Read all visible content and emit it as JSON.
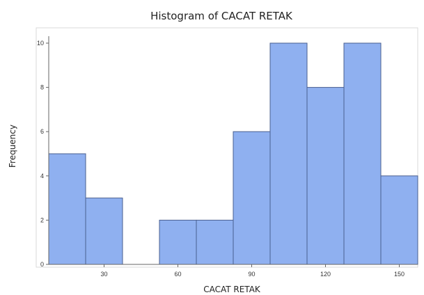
{
  "chart_data": {
    "type": "bar",
    "title": "Histogram of CACAT RETAK",
    "xlabel": "CACAT RETAK",
    "ylabel": "Frequency",
    "bin_width": 15,
    "bins": [
      {
        "start": 7.5,
        "end": 22.5,
        "count": 5
      },
      {
        "start": 22.5,
        "end": 37.5,
        "count": 3
      },
      {
        "start": 37.5,
        "end": 52.5,
        "count": 0
      },
      {
        "start": 52.5,
        "end": 67.5,
        "count": 2
      },
      {
        "start": 67.5,
        "end": 82.5,
        "count": 2
      },
      {
        "start": 82.5,
        "end": 97.5,
        "count": 6
      },
      {
        "start": 97.5,
        "end": 112.5,
        "count": 10
      },
      {
        "start": 112.5,
        "end": 127.5,
        "count": 8
      },
      {
        "start": 127.5,
        "end": 142.5,
        "count": 10
      },
      {
        "start": 142.5,
        "end": 157.5,
        "count": 4
      }
    ],
    "xlim": [
      7.5,
      157.5
    ],
    "ylim": [
      0,
      10
    ],
    "xticks": [
      30,
      60,
      90,
      120,
      150
    ],
    "yticks": [
      0,
      2,
      4,
      6,
      8,
      10
    ],
    "bar_color": "#8fb0f0",
    "bar_edge_color": "#4a5f8f",
    "grid": false
  }
}
